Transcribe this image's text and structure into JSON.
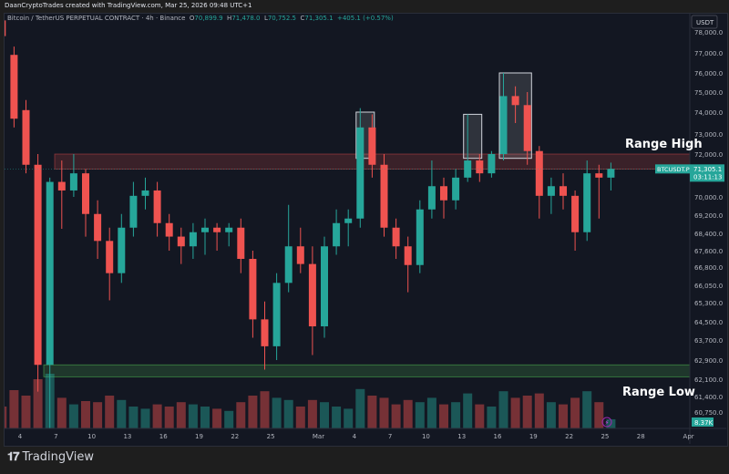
{
  "header": {
    "credit": "DaanCryptoTrades created with TradingView.com, Mar 25, 2026 09:48 UTC+1"
  },
  "legend": {
    "symbol": "Bitcoin / TetherUS PERPETUAL CONTRACT · 4h · Binance",
    "o_label": "O",
    "o": "70,899.9",
    "h_label": "H",
    "h": "71,478.0",
    "l_label": "L",
    "l": "70,752.5",
    "c_label": "C",
    "c": "71,305.1",
    "change": "+405.1 (+0.57%)"
  },
  "price_axis": {
    "currency": "USDT",
    "ticks": [
      "78,000.0",
      "77,000.0",
      "76,000.0",
      "75,000.0",
      "74,000.0",
      "73,000.0",
      "72,000.0",
      "70,000.0",
      "69,200.0",
      "68,400.0",
      "67,600.0",
      "66,800.0",
      "66,050.0",
      "65,300.0",
      "64,500.0",
      "63,700.0",
      "62,900.0",
      "62,100.0",
      "61,400.0",
      "60,750.0"
    ],
    "current_price": "71,305.1",
    "countdown": "03:11:13",
    "symbol_tag": "BTCUSDT.P",
    "volume_label": "8.37K"
  },
  "time_axis": {
    "ticks": [
      "4",
      "7",
      "10",
      "13",
      "16",
      "19",
      "22",
      "25",
      "Mar",
      "4",
      "7",
      "10",
      "13",
      "16",
      "19",
      "22",
      "25",
      "28",
      "Apr"
    ]
  },
  "annotations": {
    "range_high": "Range High",
    "range_low": "Range Low"
  },
  "footer": {
    "brand": "TradingView"
  },
  "colors": {
    "up": "#26a69a",
    "down": "#ef5350",
    "background": "#131722",
    "range_high_zone": "#ef5350",
    "range_low_zone": "#4caf50"
  },
  "chart_data": {
    "type": "candlestick",
    "interval_shown": "4h",
    "note_resolution": "approximate daily OHLC read from chart",
    "dates": [
      "Feb 2",
      "Feb 3",
      "Feb 4",
      "Feb 5",
      "Feb 6",
      "Feb 7",
      "Feb 8",
      "Feb 9",
      "Feb 10",
      "Feb 11",
      "Feb 12",
      "Feb 13",
      "Feb 14",
      "Feb 15",
      "Feb 16",
      "Feb 17",
      "Feb 18",
      "Feb 19",
      "Feb 20",
      "Feb 21",
      "Feb 22",
      "Feb 23",
      "Feb 24",
      "Feb 25",
      "Feb 26",
      "Feb 27",
      "Feb 28",
      "Mar 1",
      "Mar 2",
      "Mar 3",
      "Mar 4",
      "Mar 5",
      "Mar 6",
      "Mar 7",
      "Mar 8",
      "Mar 9",
      "Mar 10",
      "Mar 11",
      "Mar 12",
      "Mar 13",
      "Mar 14",
      "Mar 15",
      "Mar 16",
      "Mar 17",
      "Mar 18",
      "Mar 19",
      "Mar 20",
      "Mar 21",
      "Mar 22",
      "Mar 23",
      "Mar 24",
      "Mar 25"
    ],
    "ohlc": [
      [
        78600,
        79000,
        77500,
        77800
      ],
      [
        76900,
        77300,
        73300,
        73700
      ],
      [
        74100,
        74600,
        71100,
        71500
      ],
      [
        71500,
        72000,
        61600,
        62700
      ],
      [
        62700,
        70900,
        60100,
        70700
      ],
      [
        70700,
        71700,
        68600,
        70300
      ],
      [
        70300,
        72000,
        70000,
        71100
      ],
      [
        71100,
        71300,
        68250,
        69250
      ],
      [
        69250,
        69850,
        67200,
        68050
      ],
      [
        68050,
        68650,
        65400,
        66550
      ],
      [
        66550,
        69250,
        66150,
        68650
      ],
      [
        68650,
        70700,
        68250,
        70050
      ],
      [
        70050,
        70900,
        69450,
        70300
      ],
      [
        70300,
        70700,
        68250,
        68850
      ],
      [
        68850,
        69250,
        67600,
        68250
      ],
      [
        68250,
        68650,
        66950,
        67800
      ],
      [
        67800,
        68850,
        67200,
        68450
      ],
      [
        68450,
        69050,
        67400,
        68650
      ],
      [
        68650,
        68850,
        67600,
        68450
      ],
      [
        68450,
        68850,
        67800,
        68650
      ],
      [
        68650,
        69050,
        66550,
        67200
      ],
      [
        67200,
        67600,
        63800,
        64600
      ],
      [
        64600,
        65350,
        62500,
        63450
      ],
      [
        63450,
        66550,
        62900,
        66150
      ],
      [
        66150,
        69650,
        65750,
        67800
      ],
      [
        67800,
        68650,
        66550,
        66950
      ],
      [
        66950,
        67800,
        63100,
        64300
      ],
      [
        64300,
        68250,
        63800,
        67800
      ],
      [
        67800,
        69450,
        67400,
        68850
      ],
      [
        68850,
        69450,
        67800,
        69050
      ],
      [
        69050,
        74200,
        68650,
        73300
      ],
      [
        73300,
        73900,
        70900,
        71500
      ],
      [
        71500,
        72000,
        68250,
        68650
      ],
      [
        68650,
        69050,
        67200,
        67800
      ],
      [
        67800,
        68250,
        65750,
        66900
      ],
      [
        66900,
        69850,
        66550,
        69450
      ],
      [
        69450,
        71700,
        69050,
        70500
      ],
      [
        70500,
        70900,
        69050,
        69850
      ],
      [
        69850,
        71300,
        69450,
        70900
      ],
      [
        70900,
        73900,
        70700,
        71700
      ],
      [
        71700,
        72000,
        70700,
        71100
      ],
      [
        71100,
        72150,
        70900,
        72000
      ],
      [
        72000,
        76000,
        71700,
        74800
      ],
      [
        74800,
        75300,
        73500,
        74350
      ],
      [
        74350,
        75000,
        71500,
        72150
      ],
      [
        72150,
        72400,
        69050,
        70050
      ],
      [
        70050,
        70900,
        69250,
        70500
      ],
      [
        70500,
        71100,
        69450,
        70050
      ],
      [
        70050,
        70300,
        67600,
        68450
      ],
      [
        68450,
        71700,
        68050,
        71100
      ],
      [
        71100,
        71500,
        69050,
        70900
      ],
      [
        70900,
        71600,
        70300,
        71305.1
      ]
    ],
    "volume_k": [
      20,
      35,
      30,
      45,
      50,
      28,
      22,
      25,
      24,
      30,
      26,
      20,
      18,
      22,
      20,
      24,
      22,
      20,
      18,
      16,
      24,
      30,
      34,
      28,
      26,
      20,
      26,
      24,
      20,
      18,
      36,
      30,
      28,
      22,
      26,
      24,
      28,
      22,
      24,
      32,
      22,
      20,
      34,
      28,
      30,
      32,
      24,
      22,
      28,
      34,
      24,
      8.37
    ],
    "zones": [
      {
        "label": "Range High",
        "from_price": 71300,
        "to_price": 72000
      },
      {
        "label": "Range Low",
        "from_price": 62200,
        "to_price": 62700
      }
    ],
    "highlight_boxes": [
      {
        "from": "Mar 4",
        "to": "Mar 5",
        "low": 71800,
        "high": 74000
      },
      {
        "from": "Mar 13",
        "to": "Mar 14",
        "low": 71800,
        "high": 73900
      },
      {
        "from": "Mar 16",
        "to": "Mar 19",
        "low": 71800,
        "high": 76000
      }
    ],
    "y_scale": "non-linear (per tick labels)",
    "grid": false
  }
}
